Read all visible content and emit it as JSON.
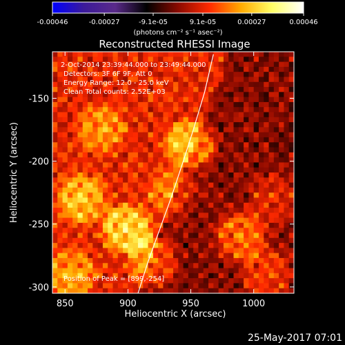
{
  "chart_data": {
    "type": "heatmap",
    "title": "Reconstructed RHESSI Image",
    "xlabel": "Heliocentric X (arcsec)",
    "ylabel": "Heliocentric Y (arcsec)",
    "xlim": [
      840,
      1032
    ],
    "ylim": [
      -305,
      -113
    ],
    "xticks": [
      850,
      900,
      950,
      1000
    ],
    "xtick_labels": [
      "850",
      "900",
      "950",
      "1000"
    ],
    "yticks": [
      -150,
      -200,
      -250,
      -300
    ],
    "ytick_labels": [
      "-150",
      "-200",
      "-250",
      "-300"
    ],
    "colorbar": {
      "min": -0.00046,
      "max": 0.00046,
      "ticks": [
        -0.00046,
        -0.00027,
        -9.1e-05,
        9.1e-05,
        0.00027,
        0.00046
      ],
      "tick_labels": [
        "-0.00046",
        "-0.00027",
        "-9.1e-05",
        "9.1e-05",
        "0.00027",
        "0.00046"
      ],
      "unit_label": "(photons cm⁻² s⁻¹ asec⁻²)",
      "colors": [
        "#0000ff",
        "#3b1a9a",
        "#5a2a8a",
        "#000000",
        "#8a0a00",
        "#ff2a00",
        "#ffaa00",
        "#ffff66",
        "#ffffff"
      ]
    },
    "peak": [
      899,
      -254
    ],
    "hotspots": [
      {
        "x": 950,
        "y": -187,
        "amp": 0.9
      },
      {
        "x": 899,
        "y": -254,
        "amp": 1.0
      },
      {
        "x": 863,
        "y": -230,
        "amp": 0.8
      },
      {
        "x": 990,
        "y": -260,
        "amp": 0.85
      },
      {
        "x": 880,
        "y": -175,
        "amp": 0.55
      },
      {
        "x": 920,
        "y": -280,
        "amp": 0.7
      },
      {
        "x": 1010,
        "y": -290,
        "amp": 0.6
      },
      {
        "x": 855,
        "y": -290,
        "amp": 0.65
      },
      {
        "x": 935,
        "y": -225,
        "amp": 0.5
      },
      {
        "x": 1015,
        "y": -230,
        "amp": 0.45
      }
    ],
    "limb_curve": [
      [
        908,
        -305
      ],
      [
        916,
        -280
      ],
      [
        925,
        -255
      ],
      [
        934,
        -230
      ],
      [
        944,
        -200
      ],
      [
        952,
        -175
      ],
      [
        961,
        -145
      ],
      [
        968,
        -115
      ]
    ]
  },
  "annotations": {
    "time_range": "2-Oct-2014 23:39:44.000 to 23:49:44.000",
    "detectors": "Detectors: 3F 6F 9F, Att 0",
    "energy_range": "Energy Range: 12.0 - 25.0 keV",
    "clean_counts": "Clean    Total counts: 2.52E+03",
    "peak_position": "Position of Peak = [899,-254]"
  },
  "footer": {
    "date": "25-May-2017 07:01"
  }
}
